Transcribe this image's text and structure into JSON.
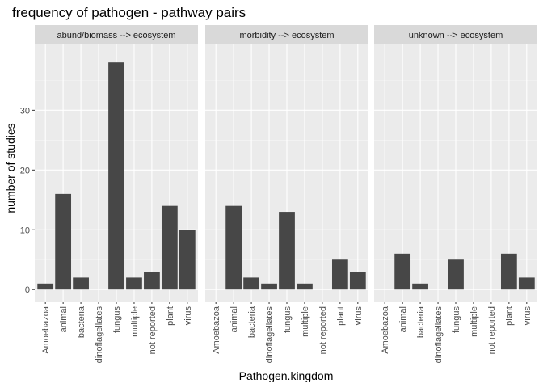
{
  "chart_data": {
    "type": "bar",
    "title": "frequency of pathogen - pathway pairs",
    "xlabel": "Pathogen.kingdom",
    "ylabel": "number of studies",
    "ylim": [
      -2,
      41
    ],
    "yticks": [
      0,
      10,
      20,
      30
    ],
    "grid": true,
    "categories": [
      "Amoebazoa",
      "animal",
      "bacteria",
      "dinoflagellates",
      "fungus",
      "multiple",
      "not reported",
      "plant",
      "virus"
    ],
    "facets": [
      {
        "name": "abund/biomass --> ecosystem",
        "values": [
          1,
          16,
          2,
          0,
          38,
          2,
          3,
          14,
          10
        ]
      },
      {
        "name": "morbidity --> ecosystem",
        "values": [
          0,
          14,
          2,
          1,
          13,
          1,
          0,
          5,
          3
        ]
      },
      {
        "name": "unknown --> ecosystem",
        "values": [
          0,
          6,
          1,
          0,
          5,
          0,
          0,
          6,
          2
        ]
      }
    ],
    "colors": {
      "bar": "#474747",
      "panel_bg": "#ebebeb",
      "strip_bg": "#d9d9d9",
      "grid_major": "#ffffff",
      "grid_minor": "#f5f5f5"
    }
  }
}
